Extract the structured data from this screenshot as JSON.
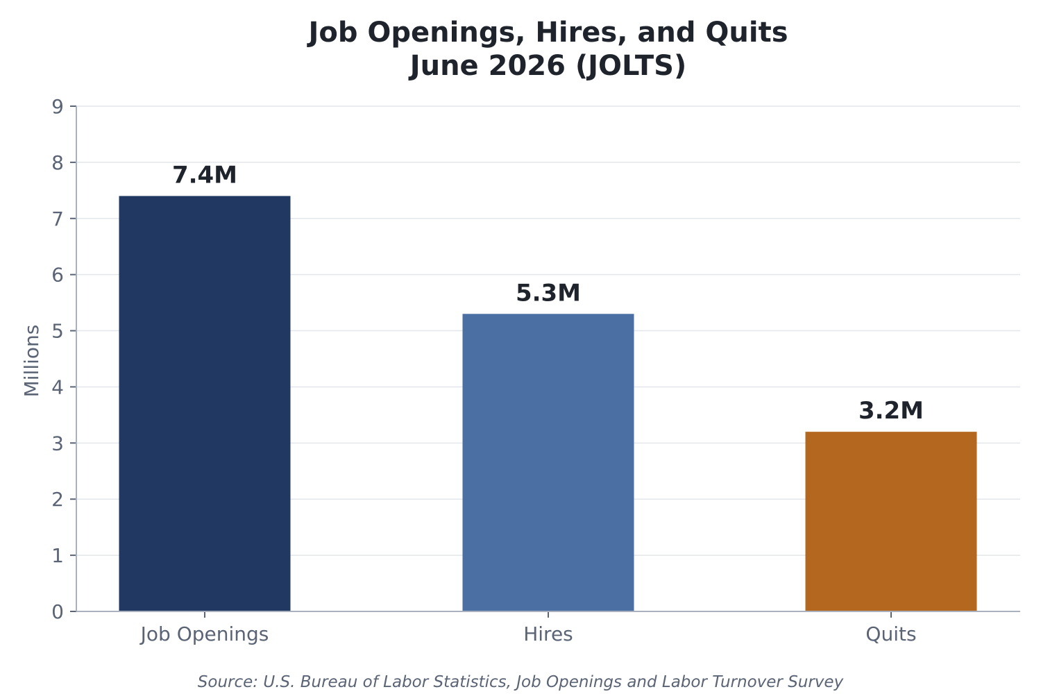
{
  "chart_data": {
    "type": "bar",
    "title_lines": [
      "Job Openings, Hires, and Quits",
      "June 2026 (JOLTS)"
    ],
    "ylabel": "Millions",
    "ylim": [
      0,
      9
    ],
    "yticks": [
      "0",
      "1",
      "2",
      "3",
      "4",
      "5",
      "6",
      "7",
      "8",
      "9"
    ],
    "categories": [
      "Job Openings",
      "Hires",
      "Quits"
    ],
    "values": [
      7.4,
      5.3,
      3.2
    ],
    "value_labels": [
      "7.4M",
      "5.3M",
      "3.2M"
    ],
    "colors": [
      "#213862",
      "#4b6ea3",
      "#b4671f"
    ],
    "grid": true,
    "source": "Source: U.S. Bureau of Labor Statistics, Job Openings and Labor Turnover Survey"
  }
}
